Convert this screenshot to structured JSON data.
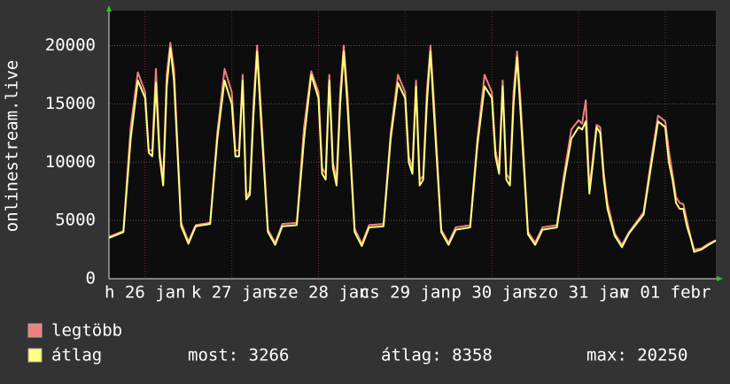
{
  "chart_data": {
    "type": "line",
    "ylabel": "onlinestream.live",
    "x": [
      0,
      4,
      6,
      8,
      10,
      11,
      12,
      13,
      14,
      15,
      16,
      17,
      18,
      20,
      22,
      24,
      28,
      30,
      32,
      34,
      35,
      36,
      37,
      38,
      39,
      40,
      41,
      42,
      44,
      46,
      48,
      52,
      54,
      56,
      58,
      59,
      60,
      61,
      62,
      63,
      64,
      65,
      66,
      68,
      70,
      72,
      76,
      78,
      80,
      82,
      83,
      84,
      85,
      86,
      87,
      88,
      89,
      90,
      92,
      94,
      96,
      100,
      102,
      104,
      106,
      107,
      108,
      109,
      110,
      111,
      112,
      113,
      114,
      116,
      118,
      120,
      124,
      126,
      128,
      130,
      131,
      132,
      133,
      134,
      135,
      136,
      137,
      138,
      140,
      142,
      144,
      148,
      150,
      152,
      154,
      155,
      156,
      157,
      158,
      159,
      160,
      161,
      162,
      164,
      166,
      168
    ],
    "series": [
      {
        "name": "legtöbb",
        "color": "#f08080",
        "values": [
          3600,
          4100,
          13000,
          17700,
          16000,
          11000,
          11000,
          18000,
          11000,
          8500,
          17500,
          20250,
          18000,
          4800,
          3200,
          4600,
          4800,
          12500,
          18000,
          16000,
          11000,
          11000,
          17500,
          7000,
          7500,
          15000,
          20000,
          15000,
          4200,
          3100,
          4700,
          4800,
          13000,
          17800,
          16000,
          9500,
          9000,
          17500,
          10000,
          8500,
          16000,
          20000,
          16000,
          4300,
          3000,
          4600,
          4700,
          12500,
          17500,
          16000,
          10500,
          9500,
          17000,
          8500,
          8800,
          16000,
          20000,
          15000,
          4200,
          3100,
          4400,
          4600,
          12000,
          17500,
          16000,
          11000,
          9500,
          17000,
          9000,
          8500,
          16000,
          19500,
          15000,
          4000,
          3100,
          4400,
          4600,
          9000,
          12800,
          13600,
          13300,
          15300,
          7700,
          10500,
          13200,
          13000,
          9000,
          6500,
          3900,
          2900,
          4000,
          5700,
          10000,
          14000,
          13500,
          11000,
          9000,
          7000,
          6500,
          6400,
          5000,
          3600,
          2500,
          2600,
          3000,
          3300
        ]
      },
      {
        "name": "átlag",
        "color": "#ffff80",
        "values": [
          3500,
          4000,
          12000,
          17000,
          15500,
          10800,
          10500,
          16800,
          10500,
          8000,
          16500,
          19800,
          17000,
          4500,
          3000,
          4500,
          4700,
          12000,
          17000,
          15000,
          10500,
          10500,
          17000,
          6800,
          7200,
          14000,
          19500,
          14000,
          4000,
          2900,
          4500,
          4600,
          12000,
          17500,
          15500,
          9000,
          8500,
          17000,
          9500,
          8000,
          15000,
          19500,
          15000,
          4000,
          2800,
          4400,
          4500,
          12000,
          16800,
          15500,
          10000,
          9000,
          16500,
          8000,
          8500,
          15000,
          19500,
          14000,
          4000,
          2900,
          4200,
          4400,
          11500,
          16500,
          15500,
          10500,
          9000,
          16500,
          8500,
          8000,
          15000,
          19000,
          14000,
          3800,
          2900,
          4200,
          4400,
          8500,
          12000,
          13000,
          12800,
          13500,
          7300,
          10000,
          13000,
          12500,
          8500,
          6000,
          3700,
          2700,
          3900,
          5500,
          9500,
          13500,
          13000,
          10000,
          8500,
          6500,
          6000,
          6000,
          4500,
          3500,
          2300,
          2500,
          2900,
          3266
        ]
      }
    ],
    "xlim": [
      0,
      168
    ],
    "xticks": [
      {
        "value": 10,
        "label": "h 26 jan"
      },
      {
        "value": 34,
        "label": "k 27 jan"
      },
      {
        "value": 58,
        "label": "sze 28 jan"
      },
      {
        "value": 82,
        "label": "cs 29 jan"
      },
      {
        "value": 106,
        "label": "p 30 jan"
      },
      {
        "value": 130,
        "label": "szo 31 jan"
      },
      {
        "value": 154,
        "label": "v 01 febr"
      }
    ],
    "ylim": [
      0,
      23000
    ],
    "yticks": [
      0,
      5000,
      10000,
      15000,
      20000
    ],
    "grid": true,
    "stats": [
      "most: 3266",
      "átlag: 8358",
      "max: 20250"
    ]
  }
}
